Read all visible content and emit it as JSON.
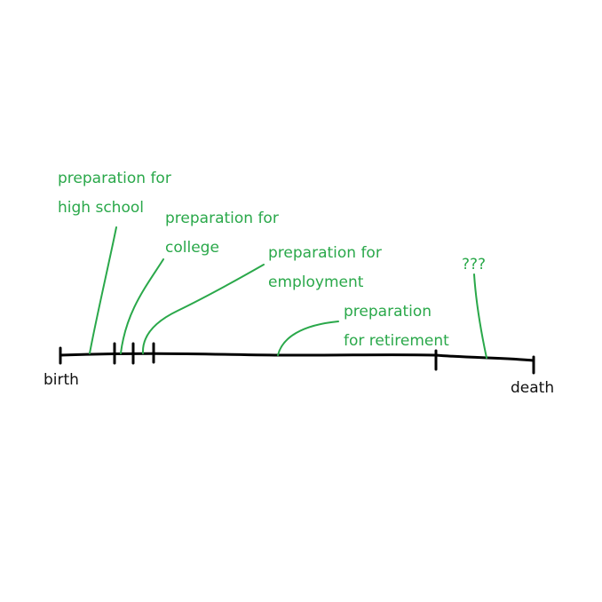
{
  "timeline": {
    "start_label": "birth",
    "end_label": "death"
  },
  "annotations": {
    "high_school": {
      "line1": "preparation for",
      "line2": "high school"
    },
    "college": {
      "line1": "preparation for",
      "line2": "college"
    },
    "employment": {
      "line1": "preparation for",
      "line2": "employment"
    },
    "retirement": {
      "line1": "preparation",
      "line2": "for retirement"
    },
    "unknown": {
      "line1": "???"
    }
  },
  "colors": {
    "annotation": "#2aa84a",
    "axis": "#000000"
  }
}
